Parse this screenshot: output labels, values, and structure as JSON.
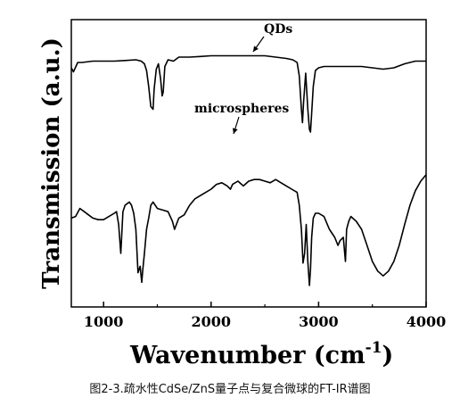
{
  "chart_data": {
    "type": "line",
    "xlabel": "Wavenumber (cm",
    "xlabel_sup": "-1",
    "xlabel_close": ")",
    "ylabel": "Transmission (a.u.)",
    "xlim": [
      700,
      4000
    ],
    "ylim": [
      0,
      1
    ],
    "x_ticks": [
      1000,
      2000,
      3000,
      4000
    ],
    "x_tick_labels": [
      "1000",
      "2000",
      "3000",
      "4000"
    ],
    "y_ticks_shown": false,
    "grid": false,
    "legend": "none",
    "annotations": [
      {
        "text": "QDs",
        "x": 2500,
        "y": 0.93
      },
      {
        "text": "microspheres",
        "x": 2200,
        "y": 0.64
      }
    ],
    "series": [
      {
        "name": "QDs",
        "x": [
          700,
          720,
          760,
          800,
          900,
          1000,
          1100,
          1200,
          1300,
          1350,
          1380,
          1400,
          1420,
          1440,
          1460,
          1470,
          1490,
          1510,
          1530,
          1545,
          1555,
          1570,
          1600,
          1650,
          1700,
          1800,
          1900,
          2000,
          2100,
          2200,
          2300,
          2400,
          2500,
          2600,
          2700,
          2760,
          2800,
          2820,
          2840,
          2850,
          2860,
          2880,
          2900,
          2915,
          2925,
          2935,
          2950,
          2970,
          3000,
          3050,
          3100,
          3200,
          3300,
          3400,
          3500,
          3600,
          3700,
          3800,
          3900,
          4000
        ],
        "y": [
          0.76,
          0.73,
          0.8,
          0.8,
          0.81,
          0.81,
          0.81,
          0.815,
          0.82,
          0.81,
          0.79,
          0.74,
          0.62,
          0.47,
          0.45,
          0.6,
          0.75,
          0.79,
          0.68,
          0.55,
          0.58,
          0.77,
          0.82,
          0.81,
          0.84,
          0.84,
          0.845,
          0.85,
          0.85,
          0.85,
          0.85,
          0.85,
          0.85,
          0.84,
          0.83,
          0.82,
          0.8,
          0.7,
          0.45,
          0.35,
          0.5,
          0.72,
          0.45,
          0.3,
          0.28,
          0.42,
          0.62,
          0.74,
          0.76,
          0.77,
          0.77,
          0.77,
          0.77,
          0.77,
          0.76,
          0.75,
          0.76,
          0.79,
          0.81,
          0.81
        ]
      },
      {
        "name": "microspheres",
        "x": [
          700,
          740,
          780,
          820,
          860,
          900,
          950,
          1000,
          1050,
          1100,
          1120,
          1140,
          1160,
          1180,
          1200,
          1220,
          1240,
          1260,
          1280,
          1300,
          1320,
          1340,
          1355,
          1365,
          1380,
          1400,
          1420,
          1440,
          1460,
          1480,
          1500,
          1550,
          1600,
          1640,
          1660,
          1700,
          1750,
          1800,
          1850,
          1900,
          1950,
          2000,
          2050,
          2100,
          2150,
          2180,
          2200,
          2250,
          2300,
          2350,
          2400,
          2450,
          2500,
          2550,
          2600,
          2650,
          2700,
          2750,
          2800,
          2820,
          2840,
          2855,
          2870,
          2885,
          2900,
          2915,
          2925,
          2935,
          2950,
          2970,
          3000,
          3050,
          3100,
          3150,
          3180,
          3200,
          3230,
          3250,
          3260,
          3280,
          3300,
          3350,
          3400,
          3450,
          3500,
          3550,
          3600,
          3650,
          3700,
          3750,
          3800,
          3850,
          3900,
          3950,
          4000
        ],
        "y": [
          0.42,
          0.43,
          0.48,
          0.46,
          0.44,
          0.42,
          0.41,
          0.41,
          0.43,
          0.45,
          0.46,
          0.38,
          0.2,
          0.46,
          0.5,
          0.51,
          0.52,
          0.5,
          0.45,
          0.35,
          0.08,
          0.12,
          0.02,
          0.1,
          0.2,
          0.35,
          0.42,
          0.5,
          0.52,
          0.5,
          0.48,
          0.47,
          0.46,
          0.4,
          0.35,
          0.42,
          0.44,
          0.5,
          0.54,
          0.56,
          0.58,
          0.6,
          0.63,
          0.64,
          0.62,
          0.6,
          0.63,
          0.65,
          0.62,
          0.65,
          0.66,
          0.66,
          0.65,
          0.64,
          0.66,
          0.64,
          0.62,
          0.6,
          0.58,
          0.5,
          0.35,
          0.14,
          0.2,
          0.38,
          0.15,
          0.0,
          0.1,
          0.3,
          0.42,
          0.45,
          0.45,
          0.43,
          0.35,
          0.3,
          0.25,
          0.28,
          0.3,
          0.15,
          0.35,
          0.4,
          0.43,
          0.4,
          0.35,
          0.25,
          0.15,
          0.09,
          0.06,
          0.09,
          0.15,
          0.25,
          0.38,
          0.5,
          0.59,
          0.65,
          0.69
        ]
      }
    ]
  },
  "caption": "图2-3.疏水性CdSe/ZnS量子点与复合微球的FT-IR谱图"
}
